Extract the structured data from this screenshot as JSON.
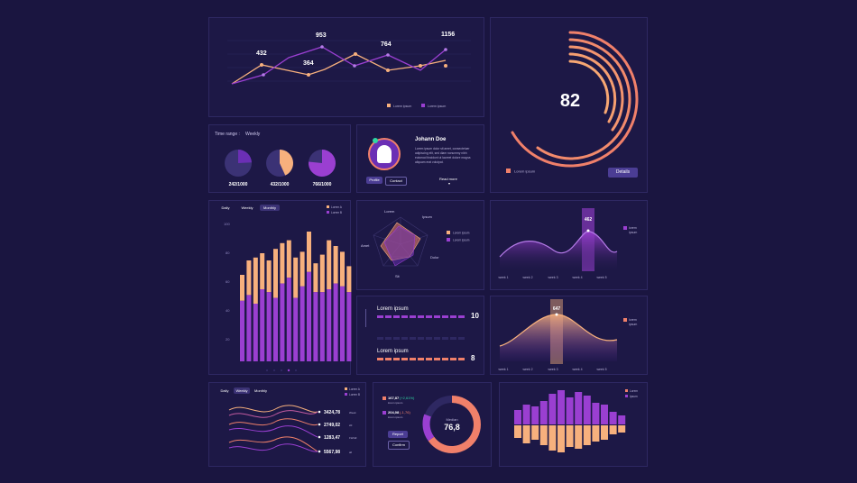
{
  "line_panel": {
    "values": [
      {
        "label": "432"
      },
      {
        "label": "364"
      },
      {
        "label": "953"
      },
      {
        "label": "764"
      },
      {
        "label": "1156"
      }
    ],
    "legend": [
      "Lorem ipsum",
      "Lorem ipsum"
    ]
  },
  "gauge": {
    "value": "82",
    "legend": "Lorem ipsum",
    "button": "Details"
  },
  "pies": {
    "time_label": "Time range :",
    "time_value": "Weekly",
    "items": [
      {
        "label": "242/1000",
        "fraction": 0.242
      },
      {
        "label": "432/1000",
        "fraction": 0.432
      },
      {
        "label": "766/1000",
        "fraction": 0.766
      }
    ]
  },
  "profile": {
    "name": "Johann Doe",
    "bio": "Lorem ipsum dolor sit amet, consectetuer adipiscing elit, sed diam nonummy nibh euismod tincidunt ut laoreet dolore magna aliquam erat volutpat.",
    "btn_profile": "Profile",
    "btn_contact": "Contact",
    "read_more": "Read more"
  },
  "bar_panel": {
    "tabs": [
      "Daily",
      "Weekly",
      "Monthly"
    ],
    "legend": [
      "Lorem A",
      "Lorem B"
    ],
    "yticks": [
      "100",
      "80",
      "60",
      "40",
      "20"
    ]
  },
  "radar": {
    "axes": [
      "Lorem",
      "Ipsum",
      "Dolor",
      "Sit",
      "Amet"
    ],
    "legend": [
      "Lorem ipsum",
      "Lorem ipsum"
    ]
  },
  "progress": {
    "items": [
      {
        "label": "Lorem ipsum",
        "value": "10"
      },
      {
        "label": "Lorem ipsum",
        "value": "8"
      }
    ]
  },
  "wave_top": {
    "value": "462",
    "legend": [
      "lorem",
      "ipsum"
    ],
    "weeks": [
      "week 1",
      "week 2",
      "week 3",
      "week 4",
      "week 5"
    ]
  },
  "wave_bottom": {
    "value": "647",
    "legend": [
      "lorem",
      "ipsum"
    ],
    "weeks": [
      "week 1",
      "week 2",
      "week 3",
      "week 4",
      "week 5"
    ]
  },
  "waves_panel": {
    "tabs": [
      "Daily",
      "Weekly",
      "Monthly"
    ],
    "legend": [
      "Lorem A",
      "Lorem B"
    ],
    "rows": [
      {
        "value": "3424,78",
        "tag": "Week"
      },
      {
        "value": "2749,02",
        "tag": "2d"
      },
      {
        "value": "1283,47",
        "tag": "1W/all"
      },
      {
        "value": "5567,98",
        "tag": "all"
      }
    ]
  },
  "donut": {
    "stats": [
      {
        "value": "167,87",
        "change": "(+2,61%)",
        "label": "lorem ipsum"
      },
      {
        "value": "204,08",
        "change": "(-1,76)",
        "label": "lorem ipsum"
      }
    ],
    "center_label": "Median",
    "center_value": "76,8",
    "btn_report": "Report",
    "btn_confirm": "Confirm"
  },
  "mirror_bars": {
    "legend": [
      "Lorem",
      "Ipsum"
    ]
  },
  "colors": {
    "bg": "#1a1540",
    "panel": "#1d1846",
    "orange": "#f7a46d",
    "coral": "#f0806a",
    "purple": "#9a3fd1",
    "violet": "#6b2fb5"
  }
}
